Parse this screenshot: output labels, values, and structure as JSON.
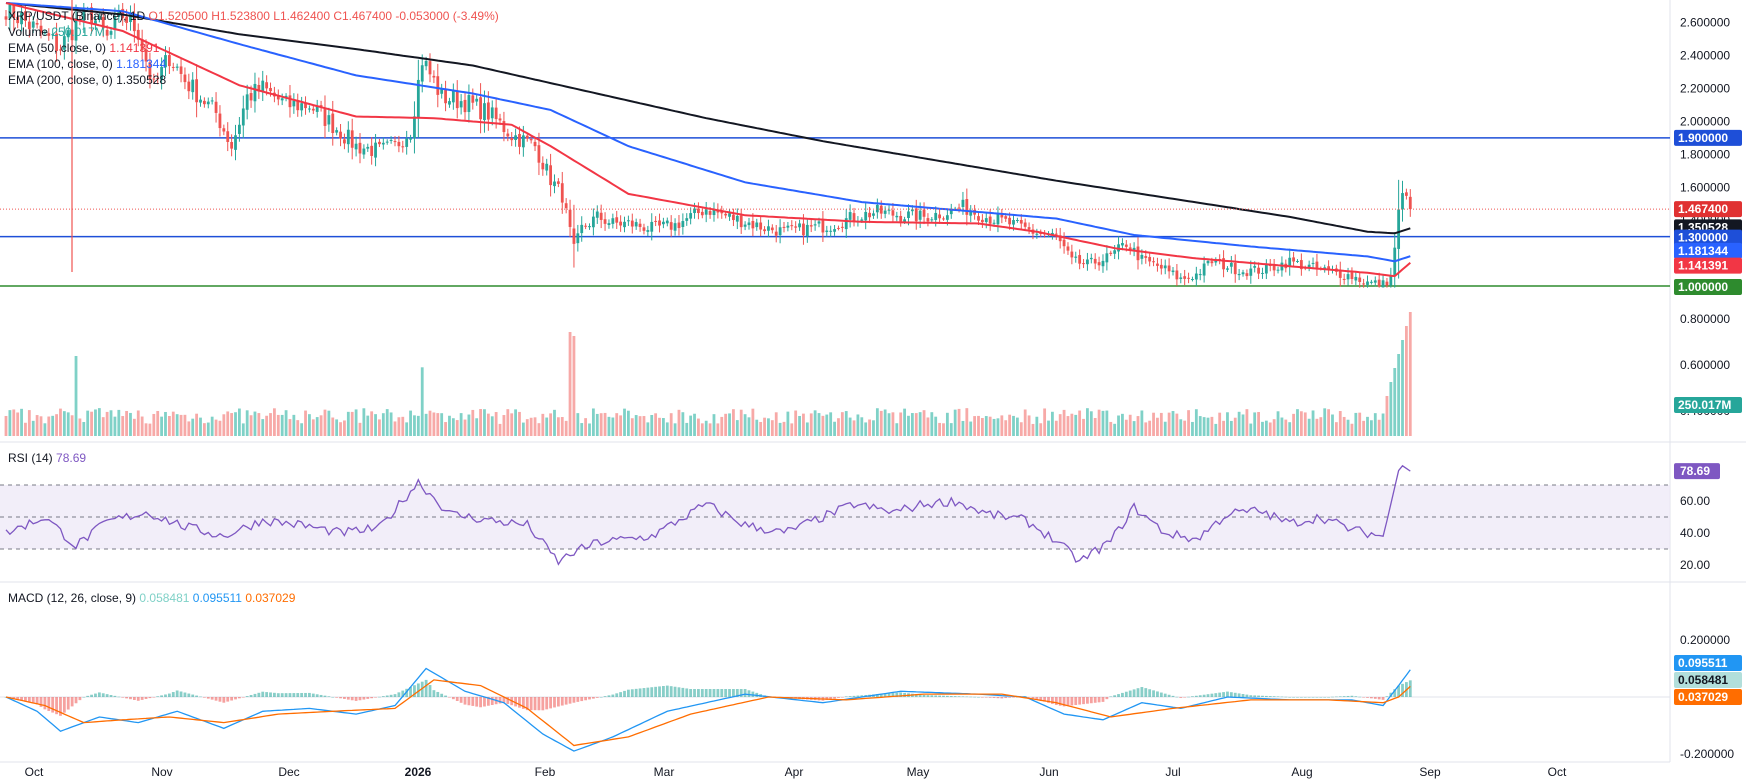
{
  "colors": {
    "bull": "#26a69a",
    "bear": "#ef5350",
    "bull_vol": "#7fd1c7",
    "bear_vol": "#f7a9a7",
    "ema50": "#f23645",
    "ema100": "#2962ff",
    "ema200": "#131722",
    "hline_blue": "#1e4fd8",
    "hline_green": "#2e8b2e",
    "rsi": "#7e57c2",
    "macd": "#2196f3",
    "signal": "#ff6d00",
    "hist_pos": "#26a69a",
    "hist_neg": "#ef5350",
    "grid": "#f0f3fa",
    "axis_text": "#131722"
  },
  "header": {
    "symbol": "XRP/USDT (Binance), 1D",
    "ohlc": "O1.520500 H1.523800 L1.462400 C1.467400 -0.053000 (-3.49%)",
    "volume_label": "Volume",
    "volume_value": "250.017M",
    "ema50_label": "EMA (50, close, 0)",
    "ema50_value": "1.141391",
    "ema100_label": "EMA (100, close, 0)",
    "ema100_value": "1.181344",
    "ema200_label": "EMA (200, close, 0)",
    "ema200_value": "1.350528"
  },
  "rsi_legend": {
    "label": "RSI (14)",
    "value": "78.69"
  },
  "macd_legend": {
    "label": "MACD (12, 26, close, 9)",
    "hist": "0.058481",
    "macd": "0.095511",
    "signal": "0.037029"
  },
  "chart_data": {
    "type": "candlestick",
    "symbol": "XRP/USDT",
    "timeframe": "1D",
    "x_labels": [
      "Oct",
      "Nov",
      "Dec",
      "2026",
      "Feb",
      "Mar",
      "Apr",
      "May",
      "Jun",
      "Jul",
      "Aug",
      "Sep",
      "Oct"
    ],
    "price_axis_ticks": [
      "2.600000",
      "2.400000",
      "2.200000",
      "2.000000",
      "1.800000",
      "1.600000",
      "1.400000",
      "1.200000",
      "1.000000",
      "0.800000",
      "0.600000",
      "0.400000"
    ],
    "price_range": [
      0.35,
      2.72
    ],
    "horizontal_lines": [
      {
        "value": 1.9,
        "label": "1.900000",
        "color": "#1e4fd8"
      },
      {
        "value": 1.3,
        "label": "1.300000",
        "color": "#1e4fd8"
      },
      {
        "value": 1.0,
        "label": "1.000000",
        "color": "#2e8b2e"
      }
    ],
    "last_price": {
      "value": 1.4674,
      "label": "1.467400"
    },
    "ema_last": {
      "ema50": 1.141391,
      "ema100": 1.181344,
      "ema200": 1.350528
    },
    "price_anchors": [
      [
        0,
        2.7
      ],
      [
        8,
        2.55
      ],
      [
        14,
        2.45
      ],
      [
        18,
        2.6
      ],
      [
        22,
        2.65
      ],
      [
        26,
        2.5
      ],
      [
        30,
        2.65
      ],
      [
        34,
        2.55
      ],
      [
        38,
        2.2
      ],
      [
        42,
        2.4
      ],
      [
        46,
        2.25
      ],
      [
        50,
        2.15
      ],
      [
        54,
        2.05
      ],
      [
        58,
        1.85
      ],
      [
        62,
        2.15
      ],
      [
        66,
        2.2
      ],
      [
        72,
        2.1
      ],
      [
        78,
        2.1
      ],
      [
        84,
        1.98
      ],
      [
        90,
        1.85
      ],
      [
        96,
        1.82
      ],
      [
        100,
        1.85
      ],
      [
        104,
        1.95
      ],
      [
        107,
        2.38
      ],
      [
        112,
        2.15
      ],
      [
        118,
        2.12
      ],
      [
        124,
        2.05
      ],
      [
        130,
        1.92
      ],
      [
        136,
        1.85
      ],
      [
        140,
        1.65
      ],
      [
        143,
        1.55
      ],
      [
        146,
        1.22
      ],
      [
        148,
        1.35
      ],
      [
        152,
        1.42
      ],
      [
        156,
        1.38
      ],
      [
        160,
        1.38
      ],
      [
        166,
        1.35
      ],
      [
        172,
        1.37
      ],
      [
        180,
        1.47
      ],
      [
        186,
        1.42
      ],
      [
        194,
        1.36
      ],
      [
        200,
        1.33
      ],
      [
        206,
        1.35
      ],
      [
        212,
        1.37
      ],
      [
        218,
        1.42
      ],
      [
        224,
        1.45
      ],
      [
        230,
        1.43
      ],
      [
        236,
        1.42
      ],
      [
        242,
        1.45
      ],
      [
        246,
        1.48
      ],
      [
        252,
        1.42
      ],
      [
        258,
        1.38
      ],
      [
        264,
        1.33
      ],
      [
        270,
        1.3
      ],
      [
        274,
        1.15
      ],
      [
        278,
        1.13
      ],
      [
        284,
        1.18
      ],
      [
        288,
        1.26
      ],
      [
        292,
        1.16
      ],
      [
        298,
        1.1
      ],
      [
        302,
        1.04
      ],
      [
        306,
        1.07
      ],
      [
        310,
        1.15
      ],
      [
        314,
        1.12
      ],
      [
        318,
        1.09
      ],
      [
        324,
        1.1
      ],
      [
        330,
        1.15
      ],
      [
        334,
        1.12
      ],
      [
        340,
        1.09
      ],
      [
        346,
        1.06
      ],
      [
        350,
        1.02
      ],
      [
        354,
        1.01
      ],
      [
        356,
        1.05
      ],
      [
        357,
        1.24
      ],
      [
        358,
        1.44
      ],
      [
        359,
        1.55
      ],
      [
        360,
        1.52
      ],
      [
        361,
        1.4674
      ]
    ],
    "ema_anchors": {
      "ema50": [
        [
          0,
          2.72
        ],
        [
          30,
          2.55
        ],
        [
          60,
          2.22
        ],
        [
          90,
          2.03
        ],
        [
          110,
          2.02
        ],
        [
          130,
          1.98
        ],
        [
          140,
          1.85
        ],
        [
          160,
          1.56
        ],
        [
          190,
          1.43
        ],
        [
          220,
          1.39
        ],
        [
          250,
          1.38
        ],
        [
          265,
          1.33
        ],
        [
          285,
          1.23
        ],
        [
          305,
          1.17
        ],
        [
          330,
          1.12
        ],
        [
          350,
          1.08
        ],
        [
          357,
          1.06
        ],
        [
          361,
          1.141391
        ]
      ],
      "ema100": [
        [
          0,
          2.72
        ],
        [
          30,
          2.67
        ],
        [
          60,
          2.47
        ],
        [
          90,
          2.28
        ],
        [
          120,
          2.17
        ],
        [
          140,
          2.07
        ],
        [
          160,
          1.85
        ],
        [
          190,
          1.63
        ],
        [
          220,
          1.51
        ],
        [
          250,
          1.45
        ],
        [
          270,
          1.41
        ],
        [
          290,
          1.31
        ],
        [
          320,
          1.24
        ],
        [
          350,
          1.18
        ],
        [
          357,
          1.15
        ],
        [
          361,
          1.181344
        ]
      ],
      "ema200": [
        [
          0,
          2.72
        ],
        [
          30,
          2.65
        ],
        [
          60,
          2.53
        ],
        [
          90,
          2.44
        ],
        [
          120,
          2.34
        ],
        [
          150,
          2.18
        ],
        [
          180,
          2.02
        ],
        [
          210,
          1.88
        ],
        [
          240,
          1.76
        ],
        [
          270,
          1.64
        ],
        [
          300,
          1.53
        ],
        [
          330,
          1.42
        ],
        [
          350,
          1.33
        ],
        [
          357,
          1.32
        ],
        [
          361,
          1.350528
        ]
      ]
    },
    "volume_spike_days": [
      18,
      107,
      145,
      146,
      355,
      356,
      357,
      358,
      359,
      360,
      361
    ],
    "rsi": {
      "period": 14,
      "last": 78.69,
      "ticks": [
        "60.00",
        "40.00",
        "20.00"
      ],
      "band": [
        30,
        70
      ],
      "anchors": [
        [
          0,
          40
        ],
        [
          10,
          50
        ],
        [
          18,
          32
        ],
        [
          26,
          47
        ],
        [
          36,
          53
        ],
        [
          46,
          44
        ],
        [
          56,
          38
        ],
        [
          66,
          48
        ],
        [
          76,
          45
        ],
        [
          86,
          40
        ],
        [
          96,
          43
        ],
        [
          106,
          72
        ],
        [
          114,
          52
        ],
        [
          124,
          48
        ],
        [
          134,
          45
        ],
        [
          142,
          22
        ],
        [
          146,
          28
        ],
        [
          152,
          34
        ],
        [
          166,
          38
        ],
        [
          180,
          58
        ],
        [
          190,
          45
        ],
        [
          200,
          40
        ],
        [
          210,
          50
        ],
        [
          218,
          58
        ],
        [
          228,
          53
        ],
        [
          236,
          58
        ],
        [
          244,
          60
        ],
        [
          252,
          52
        ],
        [
          262,
          48
        ],
        [
          270,
          35
        ],
        [
          276,
          22
        ],
        [
          284,
          35
        ],
        [
          290,
          56
        ],
        [
          298,
          40
        ],
        [
          306,
          36
        ],
        [
          314,
          52
        ],
        [
          322,
          54
        ],
        [
          330,
          46
        ],
        [
          338,
          50
        ],
        [
          346,
          42
        ],
        [
          354,
          38
        ],
        [
          356,
          58
        ],
        [
          358,
          79
        ],
        [
          359,
          82
        ],
        [
          361,
          78.69
        ]
      ]
    },
    "macd": {
      "params": [
        12,
        26,
        9
      ],
      "last": {
        "histogram": 0.058481,
        "macd": 0.095511,
        "signal": 0.037029
      },
      "ticks": [
        "0.200000",
        "-0.200000"
      ],
      "macd_anchors": [
        [
          0,
          0.0
        ],
        [
          8,
          -0.05
        ],
        [
          14,
          -0.12
        ],
        [
          24,
          -0.07
        ],
        [
          34,
          -0.09
        ],
        [
          44,
          -0.05
        ],
        [
          56,
          -0.11
        ],
        [
          66,
          -0.05
        ],
        [
          78,
          -0.04
        ],
        [
          90,
          -0.06
        ],
        [
          100,
          -0.03
        ],
        [
          108,
          0.1
        ],
        [
          118,
          0.02
        ],
        [
          128,
          -0.02
        ],
        [
          138,
          -0.13
        ],
        [
          146,
          -0.19
        ],
        [
          156,
          -0.14
        ],
        [
          170,
          -0.05
        ],
        [
          190,
          0.01
        ],
        [
          210,
          -0.02
        ],
        [
          230,
          0.02
        ],
        [
          250,
          0.01
        ],
        [
          262,
          0.0
        ],
        [
          272,
          -0.06
        ],
        [
          282,
          -0.08
        ],
        [
          292,
          -0.02
        ],
        [
          302,
          -0.04
        ],
        [
          314,
          0.0
        ],
        [
          330,
          -0.01
        ],
        [
          346,
          -0.01
        ],
        [
          354,
          -0.03
        ],
        [
          358,
          0.04
        ],
        [
          361,
          0.095511
        ]
      ],
      "signal_anchors": [
        [
          0,
          0.0
        ],
        [
          10,
          -0.03
        ],
        [
          20,
          -0.09
        ],
        [
          30,
          -0.08
        ],
        [
          42,
          -0.07
        ],
        [
          56,
          -0.09
        ],
        [
          70,
          -0.06
        ],
        [
          84,
          -0.05
        ],
        [
          100,
          -0.04
        ],
        [
          110,
          0.06
        ],
        [
          122,
          0.04
        ],
        [
          134,
          -0.04
        ],
        [
          146,
          -0.17
        ],
        [
          160,
          -0.14
        ],
        [
          176,
          -0.06
        ],
        [
          196,
          0.0
        ],
        [
          216,
          -0.01
        ],
        [
          236,
          0.01
        ],
        [
          256,
          0.01
        ],
        [
          270,
          -0.02
        ],
        [
          284,
          -0.07
        ],
        [
          300,
          -0.04
        ],
        [
          320,
          -0.01
        ],
        [
          340,
          -0.01
        ],
        [
          354,
          -0.02
        ],
        [
          358,
          0.0
        ],
        [
          361,
          0.037029
        ]
      ]
    }
  },
  "axis_tags": {
    "last_price": "1.467400",
    "ema200": "1.350528",
    "ema100": "1.181344",
    "ema50": "1.141391",
    "level_1_9": "1.900000",
    "level_1_3": "1.300000",
    "level_1_0": "1.000000",
    "volume": "250.017M",
    "rsi": "78.69",
    "macd": "0.095511",
    "hist": "0.058481",
    "signal": "0.037029"
  }
}
